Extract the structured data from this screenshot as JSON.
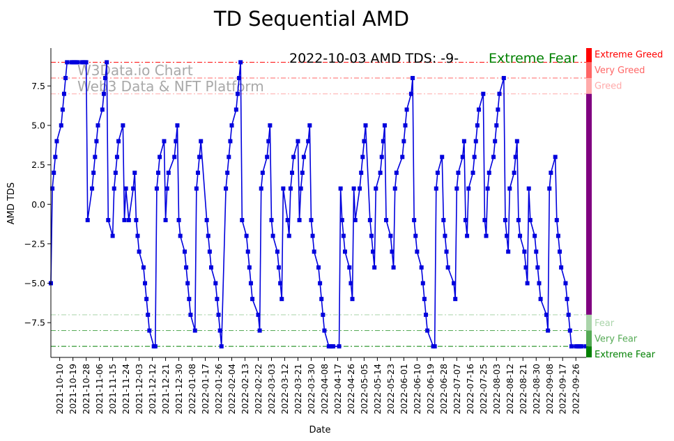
{
  "chart_data": {
    "type": "line",
    "title": "TD Sequential AMD",
    "xlabel": "Date",
    "ylabel": "AMD TDS",
    "ylim": [
      -9.7,
      9.9
    ],
    "grid": false,
    "y_ticks": [
      7.5,
      5.0,
      2.5,
      0.0,
      -2.5,
      -5.0,
      -7.5
    ],
    "y_tick_labels": [
      "7.5",
      "5.0",
      "2.5",
      "0.0",
      "−2.5",
      "−5.0",
      "−7.5"
    ],
    "x_start": "2021-10-04",
    "x_end": "2022-10-03",
    "x_ticks": [
      "2021-10-10",
      "2021-10-19",
      "2021-10-28",
      "2021-11-06",
      "2021-11-15",
      "2021-11-24",
      "2021-12-03",
      "2021-12-12",
      "2021-12-21",
      "2021-12-30",
      "2022-01-08",
      "2022-01-17",
      "2022-01-26",
      "2022-02-04",
      "2022-02-13",
      "2022-02-22",
      "2022-03-03",
      "2022-03-12",
      "2022-03-21",
      "2022-03-30",
      "2022-04-08",
      "2022-04-17",
      "2022-04-26",
      "2022-05-05",
      "2022-05-14",
      "2022-05-23",
      "2022-06-01",
      "2022-06-10",
      "2022-06-19",
      "2022-06-28",
      "2022-07-07",
      "2022-07-16",
      "2022-07-25",
      "2022-08-03",
      "2022-08-12",
      "2022-08-21",
      "2022-08-30",
      "2022-09-08",
      "2022-09-17",
      "2022-09-26"
    ],
    "annotation": {
      "text": "2022-10-03 AMD TDS: -9-",
      "status": "Extreme Fear",
      "status_color": "#008000"
    },
    "watermark": [
      "W3Data.io Chart",
      "Web3 Data & NFT Platform"
    ],
    "zones": [
      {
        "label": "Extreme Greed",
        "value": 9,
        "color": "#ff0000"
      },
      {
        "label": "Very Greed",
        "value": 8,
        "color": "#ff6666"
      },
      {
        "label": "Greed",
        "value": 7,
        "color": "#ffaaaa"
      },
      {
        "label": "Fear",
        "value": -7,
        "color": "#aad4aa"
      },
      {
        "label": "Very Fear",
        "value": -8,
        "color": "#55aa55"
      },
      {
        "label": "Extreme Fear",
        "value": -9,
        "color": "#008000"
      }
    ],
    "neutral_color": "#800080",
    "series_color": "#0000dd",
    "series": [
      {
        "x": [
          "2021-10-04",
          "2021-10-05",
          "2021-10-06",
          "2021-10-07",
          "2021-10-08",
          "2021-10-11",
          "2021-10-12",
          "2021-10-13",
          "2021-10-14",
          "2021-10-15",
          "2021-10-18",
          "2021-10-19",
          "2021-10-20",
          "2021-10-21",
          "2021-10-22",
          "2021-10-25",
          "2021-10-26",
          "2021-10-27",
          "2021-10-28",
          "2021-10-29",
          "2021-11-01",
          "2021-11-02",
          "2021-11-03",
          "2021-11-04",
          "2021-11-05",
          "2021-11-08",
          "2021-11-09",
          "2021-11-10",
          "2021-11-11",
          "2021-11-12",
          "2021-11-15",
          "2021-11-16",
          "2021-11-17",
          "2021-11-18",
          "2021-11-19",
          "2021-11-22",
          "2021-11-23",
          "2021-11-24",
          "2021-11-26",
          "2021-11-29",
          "2021-11-30",
          "2021-12-01",
          "2021-12-02",
          "2021-12-03",
          "2021-12-06",
          "2021-12-07",
          "2021-12-08",
          "2021-12-09",
          "2021-12-10",
          "2021-12-13",
          "2021-12-14",
          "2021-12-15",
          "2021-12-16",
          "2021-12-17",
          "2021-12-20",
          "2021-12-21",
          "2021-12-22",
          "2021-12-23",
          "2021-12-27",
          "2021-12-28",
          "2021-12-29",
          "2021-12-30",
          "2021-12-31",
          "2022-01-03",
          "2022-01-04",
          "2022-01-05",
          "2022-01-06",
          "2022-01-07",
          "2022-01-10",
          "2022-01-11",
          "2022-01-12",
          "2022-01-13",
          "2022-01-14",
          "2022-01-18",
          "2022-01-19",
          "2022-01-20",
          "2022-01-21",
          "2022-01-24",
          "2022-01-25",
          "2022-01-26",
          "2022-01-27",
          "2022-01-28",
          "2022-01-31",
          "2022-02-01",
          "2022-02-02",
          "2022-02-03",
          "2022-02-04",
          "2022-02-07",
          "2022-02-08",
          "2022-02-09",
          "2022-02-10",
          "2022-02-11",
          "2022-02-14",
          "2022-02-15",
          "2022-02-16",
          "2022-02-17",
          "2022-02-18",
          "2022-02-22",
          "2022-02-23",
          "2022-02-24",
          "2022-02-25",
          "2022-02-28",
          "2022-03-01",
          "2022-03-02",
          "2022-03-03",
          "2022-03-04",
          "2022-03-07",
          "2022-03-08",
          "2022-03-09",
          "2022-03-10",
          "2022-03-11",
          "2022-03-14",
          "2022-03-15",
          "2022-03-16",
          "2022-03-17",
          "2022-03-18",
          "2022-03-21",
          "2022-03-22",
          "2022-03-23",
          "2022-03-24",
          "2022-03-25",
          "2022-03-28",
          "2022-03-29",
          "2022-03-30",
          "2022-03-31",
          "2022-04-01",
          "2022-04-04",
          "2022-04-05",
          "2022-04-06",
          "2022-04-07",
          "2022-04-08",
          "2022-04-11",
          "2022-04-12",
          "2022-04-13",
          "2022-04-14",
          "2022-04-18",
          "2022-04-19",
          "2022-04-20",
          "2022-04-21",
          "2022-04-22",
          "2022-04-25",
          "2022-04-26",
          "2022-04-27",
          "2022-04-28",
          "2022-04-29",
          "2022-05-02",
          "2022-05-03",
          "2022-05-04",
          "2022-05-05",
          "2022-05-06",
          "2022-05-09",
          "2022-05-10",
          "2022-05-11",
          "2022-05-12",
          "2022-05-13",
          "2022-05-16",
          "2022-05-17",
          "2022-05-18",
          "2022-05-19",
          "2022-05-20",
          "2022-05-23",
          "2022-05-24",
          "2022-05-25",
          "2022-05-26",
          "2022-05-27",
          "2022-05-31",
          "2022-06-01",
          "2022-06-02",
          "2022-06-03",
          "2022-06-06",
          "2022-06-07",
          "2022-06-08",
          "2022-06-09",
          "2022-06-10",
          "2022-06-13",
          "2022-06-14",
          "2022-06-15",
          "2022-06-16",
          "2022-06-17",
          "2022-06-21",
          "2022-06-22",
          "2022-06-23",
          "2022-06-24",
          "2022-06-27",
          "2022-06-28",
          "2022-06-29",
          "2022-06-30",
          "2022-07-01",
          "2022-07-05",
          "2022-07-06",
          "2022-07-07",
          "2022-07-08",
          "2022-07-11",
          "2022-07-12",
          "2022-07-13",
          "2022-07-14",
          "2022-07-15",
          "2022-07-18",
          "2022-07-19",
          "2022-07-20",
          "2022-07-21",
          "2022-07-22",
          "2022-07-25",
          "2022-07-26",
          "2022-07-27",
          "2022-07-28",
          "2022-07-29",
          "2022-08-01",
          "2022-08-02",
          "2022-08-03",
          "2022-08-04",
          "2022-08-05",
          "2022-08-08",
          "2022-08-09",
          "2022-08-10",
          "2022-08-11",
          "2022-08-12",
          "2022-08-15",
          "2022-08-16",
          "2022-08-17",
          "2022-08-18",
          "2022-08-19",
          "2022-08-22",
          "2022-08-23",
          "2022-08-24",
          "2022-08-25",
          "2022-08-26",
          "2022-08-29",
          "2022-08-30",
          "2022-08-31",
          "2022-09-01",
          "2022-09-02",
          "2022-09-06",
          "2022-09-07",
          "2022-09-08",
          "2022-09-09",
          "2022-09-12",
          "2022-09-13",
          "2022-09-14",
          "2022-09-15",
          "2022-09-16",
          "2022-09-19",
          "2022-09-20",
          "2022-09-21",
          "2022-09-22",
          "2022-09-23",
          "2022-09-26",
          "2022-09-27",
          "2022-09-28",
          "2022-09-29",
          "2022-09-30",
          "2022-10-03"
        ],
        "y": [
          -5,
          1,
          2,
          3,
          4,
          5,
          6,
          7,
          8,
          9,
          9,
          9,
          9,
          9,
          9,
          9,
          9,
          9,
          9,
          -1,
          1,
          2,
          3,
          4,
          5,
          6,
          7,
          8,
          9,
          -1,
          -2,
          1,
          2,
          3,
          4,
          5,
          -1,
          1,
          -1,
          1,
          2,
          -1,
          -2,
          -3,
          -4,
          -5,
          -6,
          -7,
          -8,
          -9,
          -9,
          1,
          2,
          3,
          4,
          -1,
          1,
          2,
          3,
          4,
          5,
          -1,
          -2,
          -3,
          -4,
          -5,
          -6,
          -7,
          -8,
          1,
          2,
          3,
          4,
          -1,
          -2,
          -3,
          -4,
          -5,
          -6,
          -7,
          -8,
          -9,
          1,
          2,
          3,
          4,
          5,
          6,
          7,
          8,
          9,
          -1,
          -2,
          -3,
          -4,
          -5,
          -6,
          -7,
          -8,
          1,
          2,
          3,
          4,
          5,
          -1,
          -2,
          -3,
          -4,
          -5,
          -6,
          1,
          -1,
          -2,
          1,
          2,
          3,
          4,
          -1,
          1,
          2,
          3,
          4,
          5,
          -1,
          -2,
          -3,
          -4,
          -5,
          -6,
          -7,
          -8,
          -9,
          -9,
          -9,
          -9,
          -9,
          1,
          -1,
          -2,
          -3,
          -4,
          -5,
          -6,
          1,
          -1,
          1,
          2,
          3,
          4,
          5,
          -1,
          -2,
          -3,
          -4,
          1,
          2,
          3,
          4,
          5,
          -1,
          -2,
          -3,
          -4,
          1,
          2,
          3,
          4,
          5,
          6,
          7,
          8,
          -1,
          -2,
          -3,
          -4,
          -5,
          -6,
          -7,
          -8,
          -9,
          -9,
          1,
          2,
          3,
          -1,
          -2,
          -3,
          -4,
          -5,
          -6,
          1,
          2,
          3,
          4,
          -1,
          -2,
          1,
          2,
          3,
          4,
          5,
          6,
          7,
          -1,
          -2,
          1,
          2,
          3,
          4,
          5,
          6,
          7,
          8,
          -1,
          -2,
          -3,
          1,
          2,
          3,
          4,
          -1,
          -2,
          -3,
          -4,
          -5,
          1,
          -1,
          -2,
          -3,
          -4,
          -5,
          -6,
          -7,
          -8,
          1,
          2,
          3,
          -1,
          -2,
          -3,
          -4,
          -5,
          -6,
          -7,
          -8,
          -9,
          -9,
          -9,
          -9,
          -9,
          -9,
          -9
        ]
      }
    ]
  }
}
